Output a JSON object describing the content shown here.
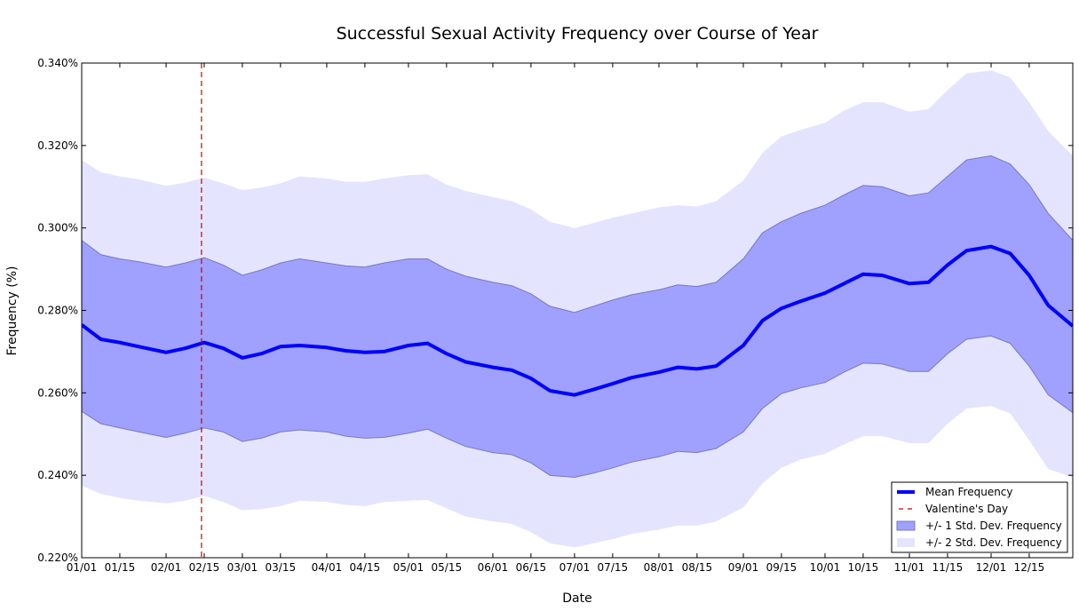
{
  "chart_data": {
    "type": "line",
    "title": "Successful Sexual Activity Frequency over Course of Year",
    "xlabel": "Date",
    "ylabel": "Frequency (%)",
    "ylim": [
      0.22,
      0.34
    ],
    "yticks": [
      "0.220%",
      "0.240%",
      "0.260%",
      "0.280%",
      "0.300%",
      "0.320%",
      "0.340%"
    ],
    "ytick_values": [
      0.22,
      0.24,
      0.26,
      0.28,
      0.3,
      0.32,
      0.34
    ],
    "xlim": [
      "01/01",
      "12/31"
    ],
    "xticks": [
      "01/01",
      "01/15",
      "02/01",
      "02/15",
      "03/01",
      "03/15",
      "04/01",
      "04/15",
      "05/01",
      "05/15",
      "06/01",
      "06/15",
      "07/01",
      "07/15",
      "08/01",
      "08/15",
      "09/01",
      "09/15",
      "10/01",
      "10/15",
      "11/01",
      "11/15",
      "12/01",
      "12/15"
    ],
    "grid": false,
    "legend_position": "bottom-right",
    "colors": {
      "mean": "#0000ff",
      "valentine": "#cc0000",
      "band1_fill": "#a0a0ff",
      "band1_edge": "#7878c0",
      "band2_fill": "#e4e4ff"
    },
    "legend": [
      {
        "label": "Mean Frequency",
        "kind": "line"
      },
      {
        "label": "Valentine's Day",
        "kind": "dashed"
      },
      {
        "label": "+/- 1 Std. Dev. Frequency",
        "kind": "band1"
      },
      {
        "label": "+/- 2 Std. Dev. Frequency",
        "kind": "band2"
      }
    ],
    "valentines_day": "02/14",
    "x": [
      "01/01",
      "01/08",
      "01/15",
      "01/22",
      "02/01",
      "02/08",
      "02/15",
      "02/22",
      "03/01",
      "03/08",
      "03/15",
      "03/22",
      "04/01",
      "04/08",
      "04/15",
      "04/22",
      "05/01",
      "05/08",
      "05/15",
      "05/22",
      "06/01",
      "06/08",
      "06/15",
      "06/22",
      "07/01",
      "07/08",
      "07/15",
      "07/22",
      "08/01",
      "08/08",
      "08/15",
      "08/22",
      "09/01",
      "09/08",
      "09/15",
      "09/22",
      "10/01",
      "10/08",
      "10/15",
      "10/22",
      "11/01",
      "11/08",
      "11/15",
      "11/22",
      "12/01",
      "12/08",
      "12/15",
      "12/22",
      "12/31"
    ],
    "series": [
      {
        "name": "Mean Frequency",
        "values": [
          0.2765,
          0.273,
          0.2722,
          0.2712,
          0.2698,
          0.2708,
          0.2722,
          0.2708,
          0.2685,
          0.2695,
          0.2712,
          0.2715,
          0.271,
          0.2702,
          0.2698,
          0.27,
          0.2715,
          0.272,
          0.2695,
          0.2675,
          0.2662,
          0.2655,
          0.2635,
          0.2605,
          0.2595,
          0.2608,
          0.2622,
          0.2637,
          0.265,
          0.2662,
          0.2658,
          0.2665,
          0.2715,
          0.2775,
          0.2805,
          0.2822,
          0.2842,
          0.2865,
          0.2888,
          0.2885,
          0.2865,
          0.2868,
          0.291,
          0.2945,
          0.2955,
          0.2938,
          0.2885,
          0.2812,
          0.2762
        ]
      },
      {
        "name": "+/- 1 Std. Dev. Frequency",
        "upper": [
          0.297,
          0.2935,
          0.2925,
          0.2918,
          0.2905,
          0.2915,
          0.2928,
          0.291,
          0.2885,
          0.2898,
          0.2915,
          0.2925,
          0.2915,
          0.2908,
          0.2905,
          0.2915,
          0.2925,
          0.2925,
          0.29,
          0.2883,
          0.2868,
          0.286,
          0.284,
          0.281,
          0.2795,
          0.281,
          0.2825,
          0.2838,
          0.285,
          0.2862,
          0.2858,
          0.2868,
          0.2925,
          0.2988,
          0.3015,
          0.3035,
          0.3055,
          0.308,
          0.3103,
          0.31,
          0.3078,
          0.3085,
          0.3125,
          0.3165,
          0.3175,
          0.3155,
          0.3105,
          0.3035,
          0.297
        ],
        "lower": [
          0.2555,
          0.2525,
          0.2515,
          0.2505,
          0.2492,
          0.2502,
          0.2515,
          0.2505,
          0.2482,
          0.249,
          0.2505,
          0.251,
          0.2505,
          0.2495,
          0.249,
          0.2492,
          0.2502,
          0.2512,
          0.249,
          0.247,
          0.2455,
          0.245,
          0.243,
          0.24,
          0.2395,
          0.2405,
          0.2418,
          0.2432,
          0.2445,
          0.2458,
          0.2455,
          0.2465,
          0.2505,
          0.2562,
          0.2598,
          0.2612,
          0.2625,
          0.265,
          0.2672,
          0.267,
          0.2652,
          0.2652,
          0.2695,
          0.273,
          0.2738,
          0.272,
          0.2665,
          0.2595,
          0.2552
        ]
      },
      {
        "name": "+/- 2 Std. Dev. Frequency",
        "upper": [
          0.3165,
          0.3135,
          0.3125,
          0.3118,
          0.3102,
          0.311,
          0.3122,
          0.3108,
          0.3092,
          0.3098,
          0.3108,
          0.3125,
          0.312,
          0.3112,
          0.3112,
          0.312,
          0.3128,
          0.313,
          0.3105,
          0.309,
          0.3075,
          0.3065,
          0.3045,
          0.3015,
          0.3,
          0.3012,
          0.3025,
          0.3035,
          0.305,
          0.3055,
          0.3052,
          0.3065,
          0.3115,
          0.3182,
          0.3222,
          0.3238,
          0.3255,
          0.3285,
          0.3305,
          0.3305,
          0.3282,
          0.3288,
          0.3335,
          0.3375,
          0.3382,
          0.3365,
          0.3305,
          0.3235,
          0.3175
        ],
        "lower": [
          0.2375,
          0.2355,
          0.2345,
          0.2338,
          0.2332,
          0.2338,
          0.235,
          0.2335,
          0.2315,
          0.2318,
          0.2325,
          0.2338,
          0.2335,
          0.2328,
          0.2325,
          0.2335,
          0.2338,
          0.234,
          0.232,
          0.23,
          0.2288,
          0.2282,
          0.2262,
          0.2235,
          0.2225,
          0.2235,
          0.2245,
          0.2258,
          0.2268,
          0.2278,
          0.2278,
          0.2288,
          0.2322,
          0.238,
          0.2418,
          0.2438,
          0.2452,
          0.2475,
          0.2495,
          0.2495,
          0.2478,
          0.2478,
          0.2525,
          0.2562,
          0.2568,
          0.255,
          0.2485,
          0.2415,
          0.2395
        ]
      }
    ]
  }
}
